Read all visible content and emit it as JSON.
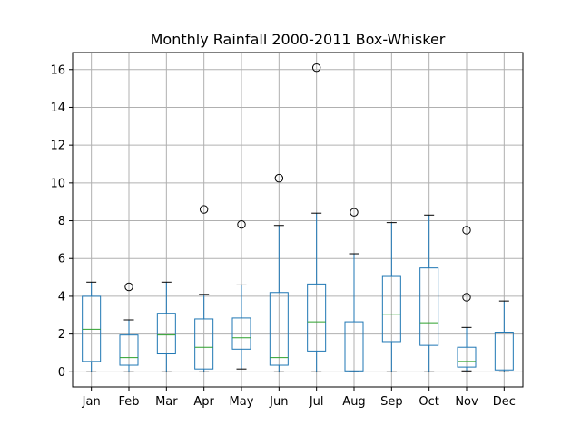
{
  "chart_data": {
    "type": "box",
    "title": "Monthly Rainfall 2000-2011 Box-Whisker",
    "xlabel": "",
    "ylabel": "",
    "ylim": [
      -0.8,
      16.9
    ],
    "yticks": [
      "0",
      "2",
      "4",
      "6",
      "8",
      "10",
      "12",
      "14",
      "16"
    ],
    "grid": true,
    "categories": [
      "Jan",
      "Feb",
      "Mar",
      "Apr",
      "May",
      "Jun",
      "Jul",
      "Aug",
      "Sep",
      "Oct",
      "Nov",
      "Dec"
    ],
    "boxes": [
      {
        "whisker_low": 0.0,
        "q1": 0.55,
        "median": 2.25,
        "q3": 4.0,
        "whisker_high": 4.75,
        "outliers": []
      },
      {
        "whisker_low": 0.0,
        "q1": 0.35,
        "median": 0.75,
        "q3": 1.95,
        "whisker_high": 2.75,
        "outliers": [
          4.5
        ]
      },
      {
        "whisker_low": 0.0,
        "q1": 0.95,
        "median": 1.95,
        "q3": 3.1,
        "whisker_high": 4.75,
        "outliers": []
      },
      {
        "whisker_low": 0.0,
        "q1": 0.15,
        "median": 1.3,
        "q3": 2.8,
        "whisker_high": 4.1,
        "outliers": [
          8.6
        ]
      },
      {
        "whisker_low": 0.15,
        "q1": 1.2,
        "median": 1.8,
        "q3": 2.85,
        "whisker_high": 4.6,
        "outliers": [
          7.8
        ]
      },
      {
        "whisker_low": 0.0,
        "q1": 0.35,
        "median": 0.75,
        "q3": 4.2,
        "whisker_high": 7.75,
        "outliers": [
          10.25
        ]
      },
      {
        "whisker_low": 0.0,
        "q1": 1.1,
        "median": 2.65,
        "q3": 4.65,
        "whisker_high": 8.4,
        "outliers": [
          16.1
        ]
      },
      {
        "whisker_low": 0.0,
        "q1": 0.05,
        "median": 1.0,
        "q3": 2.65,
        "whisker_high": 6.25,
        "outliers": [
          8.45
        ]
      },
      {
        "whisker_low": 0.0,
        "q1": 1.6,
        "median": 3.05,
        "q3": 5.05,
        "whisker_high": 7.9,
        "outliers": []
      },
      {
        "whisker_low": 0.0,
        "q1": 1.4,
        "median": 2.6,
        "q3": 5.5,
        "whisker_high": 8.3,
        "outliers": []
      },
      {
        "whisker_low": 0.05,
        "q1": 0.25,
        "median": 0.55,
        "q3": 1.3,
        "whisker_high": 2.35,
        "outliers": [
          3.95,
          7.5
        ]
      },
      {
        "whisker_low": 0.0,
        "q1": 0.1,
        "median": 1.0,
        "q3": 2.1,
        "whisker_high": 3.75,
        "outliers": []
      }
    ],
    "colors": {
      "box": "#1f77b4",
      "median": "#2ca02c",
      "whisker": "#1f77b4",
      "cap": "#000000",
      "outlier": "#000000",
      "grid": "#b0b0b0",
      "axes": "#000000"
    }
  }
}
